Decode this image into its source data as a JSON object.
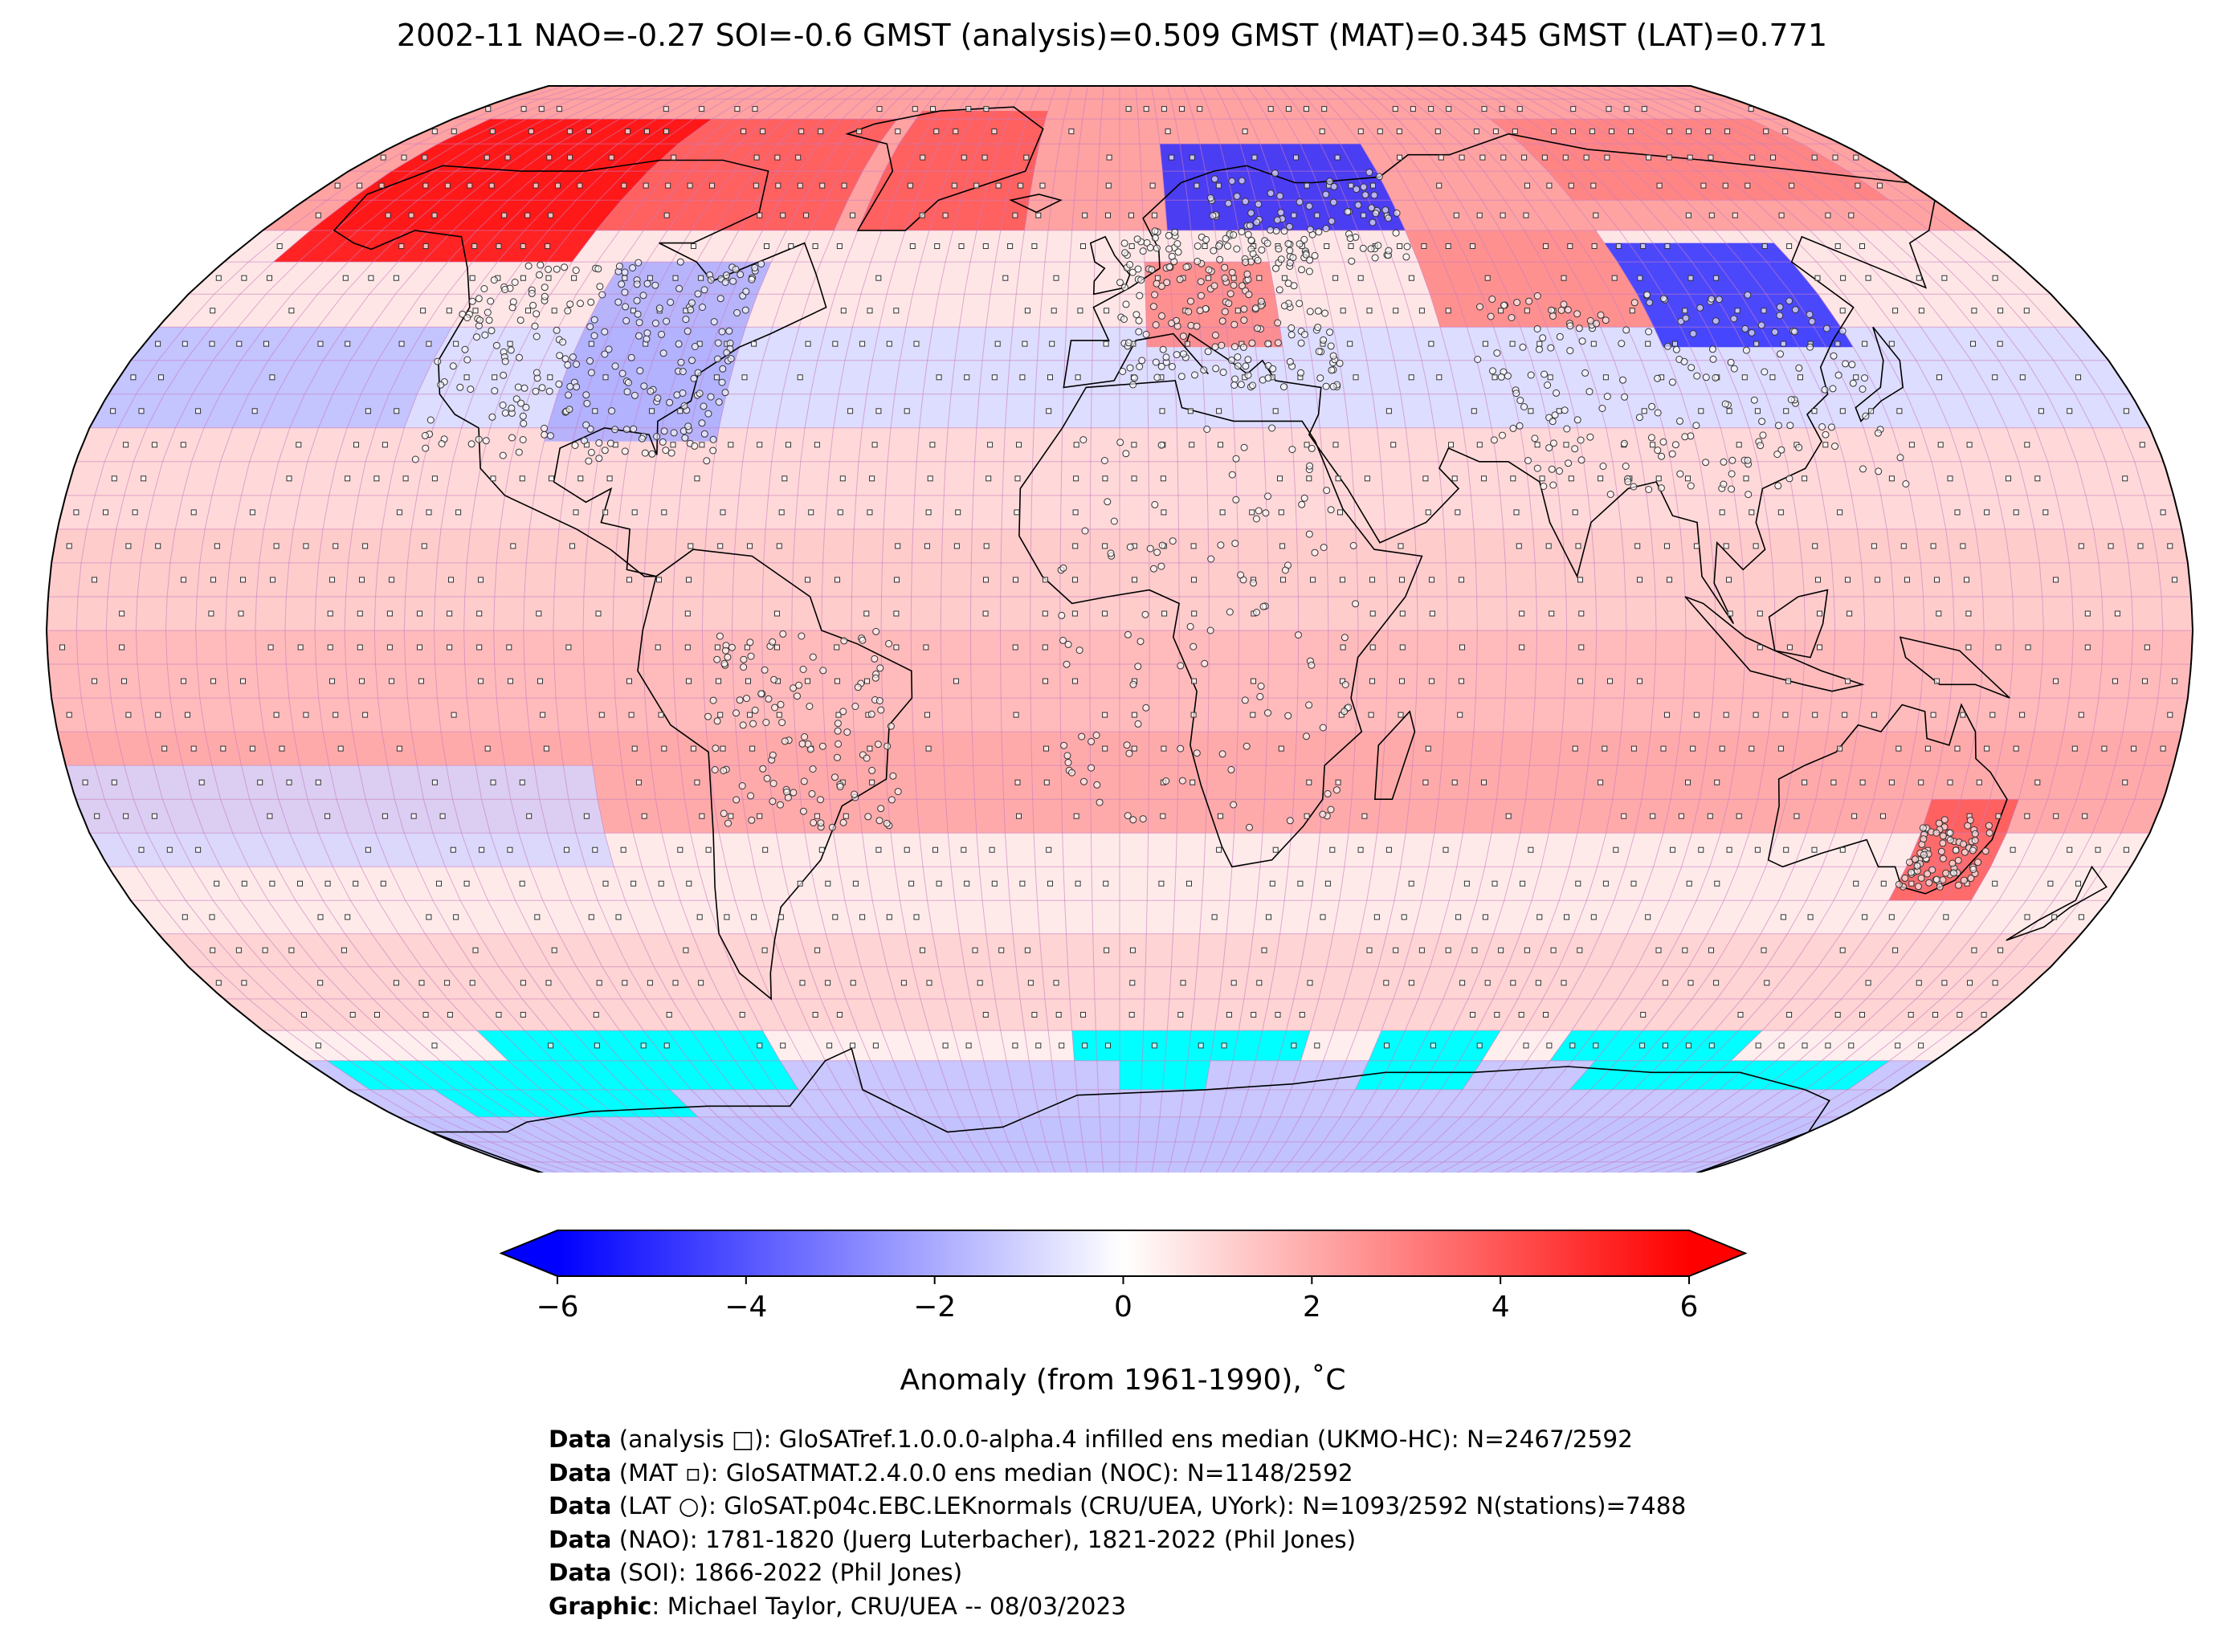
{
  "title": "2002-11 NAO=-0.27 SOI=-0.6 GMST (analysis)=0.509 GMST (MAT)=0.345 GMST (LAT)=0.771",
  "map": {
    "projection": "Robinson",
    "ocean_base_color": "#f9b4b8",
    "grid_line_color": "#c77dc0",
    "coast_color": "#000000",
    "missing_color": "#00ffff",
    "regions": [
      {
        "name": "alaska-warm",
        "lon": [
          -170,
          -110
        ],
        "lat": [
          55,
          80
        ],
        "anomaly": 6
      },
      {
        "name": "canada-warm",
        "lon": [
          -110,
          -60
        ],
        "lat": [
          60,
          80
        ],
        "anomaly": 4
      },
      {
        "name": "greenland-warm",
        "lon": [
          -55,
          -20
        ],
        "lat": [
          60,
          82
        ],
        "anomaly": 4
      },
      {
        "name": "north-america-cool",
        "lon": [
          -100,
          -70
        ],
        "lat": [
          28,
          55
        ],
        "anomaly": -2
      },
      {
        "name": "north-pacific-cool",
        "lon": [
          -180,
          -125
        ],
        "lat": [
          30,
          45
        ],
        "anomaly": -1.5
      },
      {
        "name": "scandinavia-cold",
        "lon": [
          10,
          60
        ],
        "lat": [
          60,
          75
        ],
        "anomaly": -5
      },
      {
        "name": "europe-warm",
        "lon": [
          5,
          30
        ],
        "lat": [
          42,
          55
        ],
        "anomaly": 3
      },
      {
        "name": "central-asia-warm",
        "lon": [
          60,
          100
        ],
        "lat": [
          45,
          60
        ],
        "anomaly": 3
      },
      {
        "name": "east-asia-cold",
        "lon": [
          100,
          135
        ],
        "lat": [
          42,
          58
        ],
        "anomaly": -5
      },
      {
        "name": "siberia-warm",
        "lon": [
          100,
          170
        ],
        "lat": [
          65,
          80
        ],
        "anomaly": 3
      },
      {
        "name": "australia-warm",
        "lon": [
          140,
          155
        ],
        "lat": [
          -40,
          -25
        ],
        "anomaly": 4
      },
      {
        "name": "south-pacific-cool",
        "lon": [
          -180,
          -90
        ],
        "lat": [
          -35,
          -20
        ],
        "anomaly": -1
      },
      {
        "name": "southern-ocean-cool",
        "lon": [
          -180,
          180
        ],
        "lat": [
          -90,
          -65
        ],
        "anomaly": -1.5
      }
    ],
    "missing_cells": [
      {
        "lon": [
          -135,
          -75
        ],
        "lat": [
          -60,
          -70
        ]
      },
      {
        "lon": [
          -175,
          -135
        ],
        "lat": [
          -65,
          -70
        ]
      },
      {
        "lon": [
          -160,
          -105
        ],
        "lat": [
          -70,
          -75
        ]
      },
      {
        "lon": [
          -10,
          40
        ],
        "lat": [
          -60,
          -65
        ]
      },
      {
        "lon": [
          0,
          20
        ],
        "lat": [
          -65,
          -70
        ]
      },
      {
        "lon": [
          55,
          80
        ],
        "lat": [
          -60,
          -70
        ]
      },
      {
        "lon": [
          95,
          135
        ],
        "lat": [
          -60,
          -65
        ]
      },
      {
        "lon": [
          105,
          170
        ],
        "lat": [
          -65,
          -70
        ]
      }
    ]
  },
  "colorbar": {
    "label": "Anomaly (from 1961-1990), ˚C",
    "min": -6,
    "max": 6,
    "extend": "both",
    "ticks": [
      "−6",
      "−4",
      "−2",
      "0",
      "2",
      "4",
      "6"
    ],
    "tick_values": [
      -6,
      -4,
      -2,
      0,
      2,
      4,
      6
    ],
    "cmap_low": "#0000ff",
    "cmap_mid": "#ffffff",
    "cmap_high": "#ff0000"
  },
  "credits": [
    {
      "label": "Data",
      "text": " (analysis □): GloSATref.1.0.0.0-alpha.4 infilled ens median (UKMO-HC): N=2467/2592"
    },
    {
      "label": "Data",
      "text": " (MAT ▫): GloSATMAT.2.4.0.0 ens median (NOC): N=1148/2592"
    },
    {
      "label": "Data",
      "text": " (LAT ○): GloSAT.p04c.EBC.LEKnormals (CRU/UEA, UYork): N=1093/2592 N(stations)=7488"
    },
    {
      "label": "Data",
      "text": " (NAO): 1781-1820 (Juerg Luterbacher), 1821-2022 (Phil Jones)"
    },
    {
      "label": "Data",
      "text": " (SOI): 1866-2022 (Phil Jones)"
    },
    {
      "label": "Graphic",
      "text": ": Michael Taylor, CRU/UEA -- 08/03/2023"
    }
  ]
}
